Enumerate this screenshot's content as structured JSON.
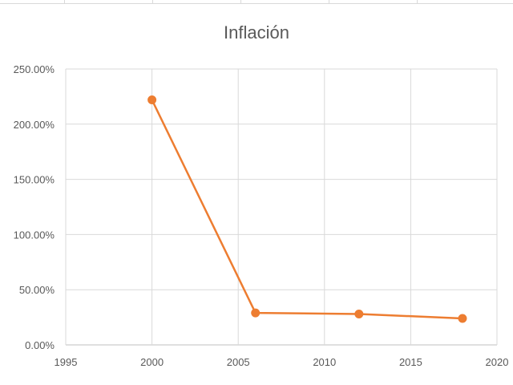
{
  "chart_data": {
    "type": "scatter",
    "mode": "lines+markers",
    "title": "Inflación",
    "xlabel": "",
    "ylabel": "",
    "xlim": [
      1995,
      2020
    ],
    "ylim": [
      0,
      2.5
    ],
    "x_ticks": [
      1995,
      2000,
      2005,
      2010,
      2015,
      2020
    ],
    "x_tick_labels": [
      "1995",
      "2000",
      "2005",
      "2010",
      "2015",
      "2020"
    ],
    "y_ticks": [
      0,
      0.5,
      1.0,
      1.5,
      2.0,
      2.5
    ],
    "y_tick_labels": [
      "0.00%",
      "50.00%",
      "100.00%",
      "150.00%",
      "200.00%",
      "250.00%"
    ],
    "grid": true,
    "legend": "none",
    "series": [
      {
        "color": "#ed7d31",
        "points": [
          {
            "x": 2000,
            "y": 2.22
          },
          {
            "x": 2006,
            "y": 0.29
          },
          {
            "x": 2012,
            "y": 0.28
          },
          {
            "x": 2018,
            "y": 0.24
          }
        ]
      }
    ]
  }
}
